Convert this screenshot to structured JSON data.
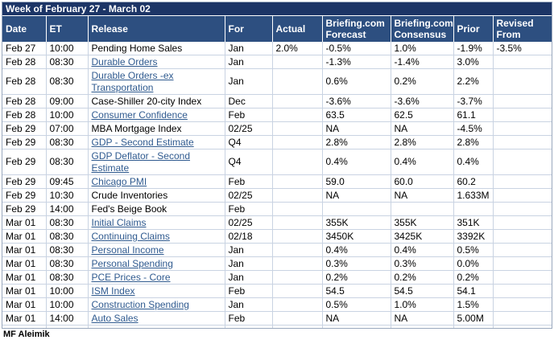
{
  "title": "Week of February 27 - March 02",
  "columns": [
    "Date",
    "ET",
    "Release",
    "For",
    "Actual",
    "Briefing.com Forecast",
    "Briefing.com Consensus",
    "Prior",
    "Revised From"
  ],
  "rows": [
    {
      "date": "Feb 27",
      "et": "10:00",
      "release": "Pending Home Sales",
      "link": false,
      "for": "Jan",
      "actual": "2.0%",
      "forecast": "-0.5%",
      "consensus": "1.0%",
      "prior": "-1.9%",
      "revised": "-3.5%"
    },
    {
      "date": "Feb 28",
      "et": "08:30",
      "release": "Durable Orders",
      "link": true,
      "for": "Jan",
      "actual": "",
      "forecast": "-1.3%",
      "consensus": "-1.4%",
      "prior": "3.0%",
      "revised": ""
    },
    {
      "date": "Feb 28",
      "et": "08:30",
      "release": "Durable Orders -ex Transportation",
      "link": true,
      "tall": true,
      "for": "Jan",
      "actual": "",
      "forecast": "0.6%",
      "consensus": "0.2%",
      "prior": "2.2%",
      "revised": ""
    },
    {
      "date": "Feb 28",
      "et": "09:00",
      "release": "Case-Shiller 20-city Index",
      "link": false,
      "for": "Dec",
      "actual": "",
      "forecast": "-3.6%",
      "consensus": "-3.6%",
      "prior": "-3.7%",
      "revised": ""
    },
    {
      "date": "Feb 28",
      "et": "10:00",
      "release": "Consumer Confidence",
      "link": true,
      "for": "Feb",
      "actual": "",
      "forecast": "63.5",
      "consensus": "62.5",
      "prior": "61.1",
      "revised": ""
    },
    {
      "date": "Feb 29",
      "et": "07:00",
      "release": "MBA Mortgage Index",
      "link": false,
      "for": "02/25",
      "actual": "",
      "forecast": "NA",
      "consensus": "NA",
      "prior": "-4.5%",
      "revised": ""
    },
    {
      "date": "Feb 29",
      "et": "08:30",
      "release": "GDP - Second Estimate",
      "link": true,
      "for": "Q4",
      "actual": "",
      "forecast": "2.8%",
      "consensus": "2.8%",
      "prior": "2.8%",
      "revised": ""
    },
    {
      "date": "Feb 29",
      "et": "08:30",
      "release": "GDP Deflator - Second Estimate",
      "link": true,
      "tall": true,
      "for": "Q4",
      "actual": "",
      "forecast": "0.4%",
      "consensus": "0.4%",
      "prior": "0.4%",
      "revised": ""
    },
    {
      "date": "Feb 29",
      "et": "09:45",
      "release": "Chicago PMI",
      "link": true,
      "for": "Feb",
      "actual": "",
      "forecast": "59.0",
      "consensus": "60.0",
      "prior": "60.2",
      "revised": ""
    },
    {
      "date": "Feb 29",
      "et": "10:30",
      "release": "Crude Inventories",
      "link": false,
      "for": "02/25",
      "actual": "",
      "forecast": "NA",
      "consensus": "NA",
      "prior": "1.633M",
      "revised": ""
    },
    {
      "date": "Feb 29",
      "et": "14:00",
      "release": "Fed's Beige Book",
      "link": false,
      "for": "Feb",
      "actual": "",
      "forecast": "",
      "consensus": "",
      "prior": "",
      "revised": ""
    },
    {
      "date": "Mar 01",
      "et": "08:30",
      "release": "Initial Claims",
      "link": true,
      "for": "02/25",
      "actual": "",
      "forecast": "355K",
      "consensus": "355K",
      "prior": "351K",
      "revised": ""
    },
    {
      "date": "Mar 01",
      "et": "08:30",
      "release": "Continuing Claims",
      "link": true,
      "for": "02/18",
      "actual": "",
      "forecast": "3450K",
      "consensus": "3425K",
      "prior": "3392K",
      "revised": ""
    },
    {
      "date": "Mar 01",
      "et": "08:30",
      "release": "Personal Income",
      "link": true,
      "for": "Jan",
      "actual": "",
      "forecast": "0.4%",
      "consensus": "0.4%",
      "prior": "0.5%",
      "revised": ""
    },
    {
      "date": "Mar 01",
      "et": "08:30",
      "release": "Personal Spending",
      "link": true,
      "for": "Jan",
      "actual": "",
      "forecast": "0.3%",
      "consensus": "0.3%",
      "prior": "0.0%",
      "revised": ""
    },
    {
      "date": "Mar 01",
      "et": "08:30",
      "release": "PCE Prices - Core",
      "link": true,
      "for": "Jan",
      "actual": "",
      "forecast": "0.2%",
      "consensus": "0.2%",
      "prior": "0.2%",
      "revised": ""
    },
    {
      "date": "Mar 01",
      "et": "10:00",
      "release": "ISM Index",
      "link": true,
      "for": "Feb",
      "actual": "",
      "forecast": "54.5",
      "consensus": "54.5",
      "prior": "54.1",
      "revised": ""
    },
    {
      "date": "Mar 01",
      "et": "10:00",
      "release": "Construction Spending",
      "link": true,
      "for": "Jan",
      "actual": "",
      "forecast": "0.5%",
      "consensus": "1.0%",
      "prior": "1.5%",
      "revised": ""
    },
    {
      "date": "Mar 01",
      "et": "14:00",
      "release": "Auto Sales",
      "link": true,
      "for": "Feb",
      "actual": "",
      "forecast": "NA",
      "consensus": "NA",
      "prior": "5.00M",
      "revised": ""
    },
    {
      "date": "Mar 01",
      "et": "14:00",
      "release": "Truck Sales",
      "link": true,
      "for": "Feb",
      "actual": "",
      "forecast": "NA",
      "consensus": "NA",
      "prior": "5.73M",
      "revised": ""
    }
  ],
  "footer": "MF Aleimik"
}
